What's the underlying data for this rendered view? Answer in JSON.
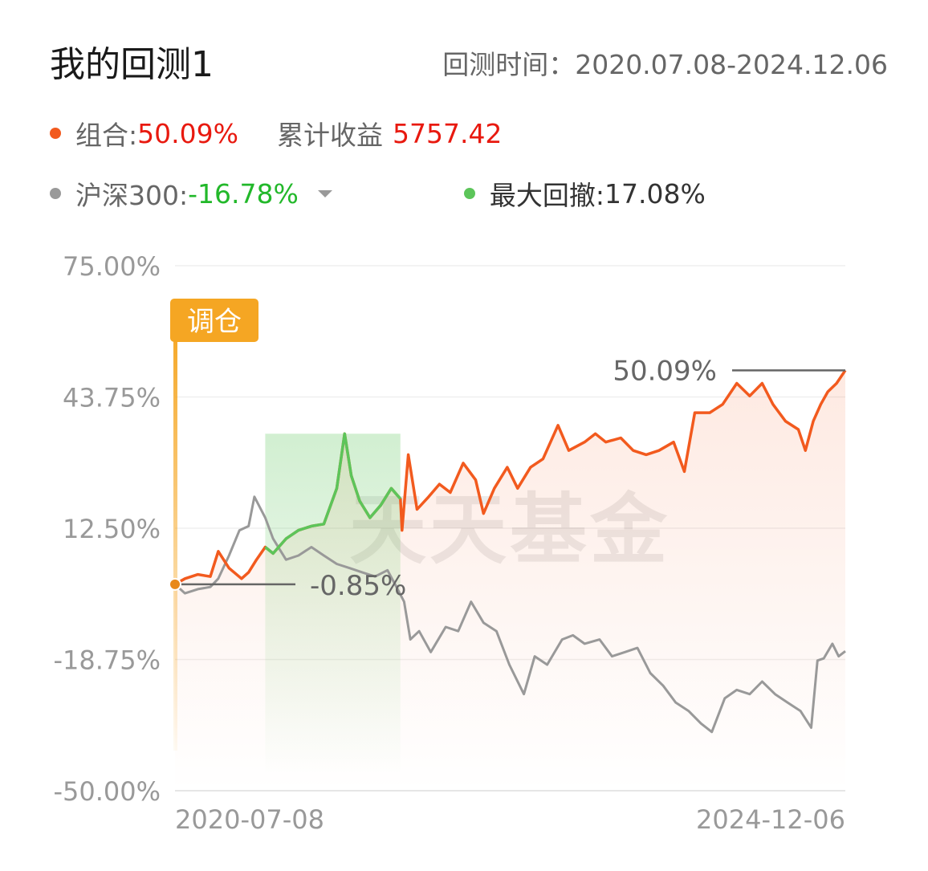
{
  "header": {
    "title": "我的回测1",
    "range_label": "回测时间：",
    "range_value": "2020.07.08-2024.12.06"
  },
  "legend": {
    "portfolio": {
      "label": "组合:",
      "value": "50.09%",
      "color": "#f25a1e"
    },
    "cumulative": {
      "label": "累计收益",
      "value": "5757.42"
    },
    "benchmark": {
      "label": "沪深300:",
      "value": "-16.78%",
      "color": "#999999"
    },
    "drawdown": {
      "label": "最大回撤:",
      "value": "17.08%",
      "color": "#5cc55a"
    }
  },
  "chart_data": {
    "type": "line",
    "y_ticks": [
      "75.00%",
      "43.75%",
      "12.50%",
      "-18.75%",
      "-50.00%"
    ],
    "ylim": [
      -50,
      75
    ],
    "x_range": [
      "2020-07-08",
      "2024-12-06"
    ],
    "x_tick_labels": [
      "2020-07-08",
      "2024-12-06"
    ],
    "rebalance_tag": "调仓",
    "start_label": "-0.85%",
    "end_label": "50.09%",
    "watermark": "天天基金",
    "drawdown_range": [
      "2021-02-10",
      "2022-01-01"
    ],
    "series": [
      {
        "name": "组合",
        "color": "#f25a1e",
        "points": [
          [
            "2020-07-08",
            -0.85
          ],
          [
            "2020-08-01",
            0.5
          ],
          [
            "2020-09-01",
            1.5
          ],
          [
            "2020-10-01",
            1.0
          ],
          [
            "2020-10-20",
            7.0
          ],
          [
            "2020-11-15",
            3.0
          ],
          [
            "2020-12-15",
            0.5
          ],
          [
            "2021-01-01",
            2.0
          ],
          [
            "2021-01-20",
            5.0
          ],
          [
            "2021-02-10",
            8.0
          ],
          [
            "2021-03-01",
            6.5
          ],
          [
            "2021-04-01",
            10.0
          ],
          [
            "2021-05-01",
            12.0
          ],
          [
            "2021-06-01",
            13.0
          ],
          [
            "2021-07-01",
            13.5
          ],
          [
            "2021-08-01",
            22.0
          ],
          [
            "2021-08-20",
            35.0
          ],
          [
            "2021-09-05",
            25.0
          ],
          [
            "2021-09-25",
            19.0
          ],
          [
            "2021-10-20",
            15.0
          ],
          [
            "2021-11-15",
            18.0
          ],
          [
            "2021-12-10",
            22.0
          ],
          [
            "2022-01-01",
            19.5
          ],
          [
            "2022-01-05",
            12.0
          ],
          [
            "2022-01-20",
            30.0
          ],
          [
            "2022-02-10",
            17.0
          ],
          [
            "2022-03-10",
            20.0
          ],
          [
            "2022-04-05",
            23.0
          ],
          [
            "2022-05-01",
            21.0
          ],
          [
            "2022-06-01",
            28.0
          ],
          [
            "2022-07-01",
            24.0
          ],
          [
            "2022-07-20",
            16.0
          ],
          [
            "2022-08-15",
            22.0
          ],
          [
            "2022-09-15",
            27.0
          ],
          [
            "2022-10-10",
            22.0
          ],
          [
            "2022-11-10",
            27.0
          ],
          [
            "2022-12-10",
            29.0
          ],
          [
            "2023-01-15",
            37.0
          ],
          [
            "2023-02-10",
            31.0
          ],
          [
            "2023-03-20",
            33.0
          ],
          [
            "2023-04-15",
            35.0
          ],
          [
            "2023-05-10",
            33.0
          ],
          [
            "2023-06-15",
            34.0
          ],
          [
            "2023-07-15",
            31.0
          ],
          [
            "2023-08-15",
            30.0
          ],
          [
            "2023-09-15",
            31.0
          ],
          [
            "2023-10-20",
            33.0
          ],
          [
            "2023-11-15",
            26.0
          ],
          [
            "2023-12-10",
            40.0
          ],
          [
            "2024-01-15",
            40.0
          ],
          [
            "2024-02-15",
            42.0
          ],
          [
            "2024-03-20",
            47.0
          ],
          [
            "2024-04-20",
            44.0
          ],
          [
            "2024-05-20",
            47.0
          ],
          [
            "2024-06-15",
            42.0
          ],
          [
            "2024-07-15",
            38.0
          ],
          [
            "2024-08-15",
            36.0
          ],
          [
            "2024-09-01",
            31.0
          ],
          [
            "2024-09-20",
            38.0
          ],
          [
            "2024-10-08",
            42.0
          ],
          [
            "2024-10-25",
            45.0
          ],
          [
            "2024-11-15",
            47.0
          ],
          [
            "2024-12-06",
            50.09
          ]
        ]
      },
      {
        "name": "沪深300",
        "color": "#999999",
        "points": [
          [
            "2020-07-08",
            -0.85
          ],
          [
            "2020-08-01",
            -3.0
          ],
          [
            "2020-09-01",
            -2.0
          ],
          [
            "2020-10-01",
            -1.5
          ],
          [
            "2020-10-20",
            0.5
          ],
          [
            "2020-11-15",
            6.0
          ],
          [
            "2020-12-10",
            12.0
          ],
          [
            "2021-01-01",
            13.0
          ],
          [
            "2021-01-15",
            20.0
          ],
          [
            "2021-02-10",
            15.0
          ],
          [
            "2021-03-01",
            10.0
          ],
          [
            "2021-04-01",
            5.0
          ],
          [
            "2021-05-01",
            6.0
          ],
          [
            "2021-06-01",
            8.0
          ],
          [
            "2021-07-01",
            6.0
          ],
          [
            "2021-08-01",
            4.0
          ],
          [
            "2021-09-01",
            3.0
          ],
          [
            "2021-10-01",
            2.0
          ],
          [
            "2021-11-01",
            1.0
          ],
          [
            "2021-12-01",
            2.5
          ],
          [
            "2021-12-20",
            -1.0
          ],
          [
            "2022-01-10",
            -5.0
          ],
          [
            "2022-01-25",
            -14.0
          ],
          [
            "2022-02-15",
            -12.0
          ],
          [
            "2022-03-15",
            -17.0
          ],
          [
            "2022-04-20",
            -11.0
          ],
          [
            "2022-05-20",
            -12.0
          ],
          [
            "2022-06-20",
            -5.0
          ],
          [
            "2022-07-20",
            -10.0
          ],
          [
            "2022-08-20",
            -12.0
          ],
          [
            "2022-09-20",
            -20.0
          ],
          [
            "2022-10-25",
            -27.0
          ],
          [
            "2022-11-20",
            -18.0
          ],
          [
            "2022-12-20",
            -20.0
          ],
          [
            "2023-01-25",
            -14.0
          ],
          [
            "2023-02-20",
            -13.0
          ],
          [
            "2023-03-20",
            -15.0
          ],
          [
            "2023-04-25",
            -14.0
          ],
          [
            "2023-05-25",
            -18.0
          ],
          [
            "2023-06-25",
            -17.0
          ],
          [
            "2023-07-25",
            -16.0
          ],
          [
            "2023-08-25",
            -22.0
          ],
          [
            "2023-09-25",
            -25.0
          ],
          [
            "2023-10-25",
            -29.0
          ],
          [
            "2023-11-25",
            -31.0
          ],
          [
            "2023-12-25",
            -34.0
          ],
          [
            "2024-01-20",
            -36.0
          ],
          [
            "2024-02-20",
            -28.0
          ],
          [
            "2024-03-20",
            -26.0
          ],
          [
            "2024-04-20",
            -27.0
          ],
          [
            "2024-05-20",
            -24.0
          ],
          [
            "2024-06-20",
            -27.0
          ],
          [
            "2024-07-20",
            -29.0
          ],
          [
            "2024-08-20",
            -31.0
          ],
          [
            "2024-09-15",
            -35.0
          ],
          [
            "2024-09-30",
            -19.0
          ],
          [
            "2024-10-15",
            -18.5
          ],
          [
            "2024-11-05",
            -15.0
          ],
          [
            "2024-11-20",
            -18.0
          ],
          [
            "2024-12-06",
            -16.78
          ]
        ]
      }
    ]
  }
}
